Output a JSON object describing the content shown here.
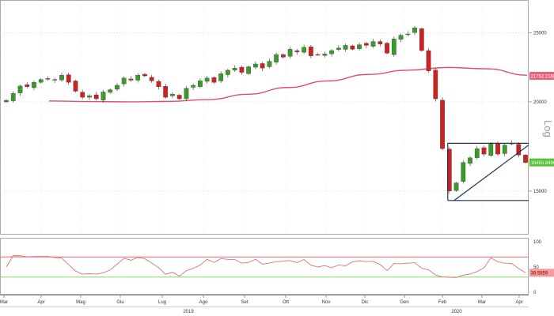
{
  "chart_data": [
    {
      "type": "candlestick",
      "title": "",
      "scale": "log",
      "scale_label": "Log",
      "y_ticks": [
        15000,
        20000,
        25000
      ],
      "ylim": [
        13200,
        27500
      ],
      "x_ticks": [
        "Mar",
        "Apr",
        "Mag",
        "Giu",
        "Lug",
        "Ago",
        "Set",
        "Ott",
        "Nov",
        "Dic",
        "Gen",
        "Feb",
        "Mar",
        "Apr"
      ],
      "years": [
        "2019",
        "2020"
      ],
      "grid": true,
      "colors": {
        "up": "#3a9a2a",
        "down": "#cc2222",
        "ma": "#e0506a",
        "pattern": "#223355"
      },
      "price_series": [
        20100,
        20550,
        21050,
        21000,
        21300,
        21500,
        21550,
        21500,
        21800,
        21300,
        20700,
        20300,
        20400,
        20200,
        20650,
        20800,
        21100,
        21600,
        21450,
        21800,
        21750,
        21400,
        21000,
        20300,
        20500,
        20200,
        20900,
        21100,
        21400,
        21600,
        21300,
        21900,
        22150,
        22300,
        22000,
        22400,
        22600,
        22300,
        22800,
        23300,
        23100,
        23700,
        23500,
        23850,
        23200,
        23300,
        23350,
        23600,
        23800,
        24000,
        23700,
        24050,
        24000,
        24300,
        24100,
        23400,
        24500,
        24800,
        24900,
        25400,
        23600,
        22100,
        20200,
        17200,
        15000,
        15400,
        16450,
        16700,
        17200,
        16900,
        17500,
        16900,
        17400,
        17500,
        16850,
        16450
      ],
      "moving_average": {
        "values": [
          20060,
          20020,
          20000,
          20030,
          20150,
          20500,
          20950,
          21400,
          21850,
          22150,
          22350,
          22250,
          21800
        ],
        "last": "21752.2168"
      },
      "last_price": "16450.8496",
      "pattern": {
        "resistance": 17500,
        "support": 14550,
        "rising_trendline": [
          14550,
          17400
        ]
      },
      "rsi": {
        "y_ticks": [
          100,
          50,
          0
        ],
        "upper_band": 70,
        "lower_band": 30,
        "last": "38.5959"
      }
    }
  ]
}
